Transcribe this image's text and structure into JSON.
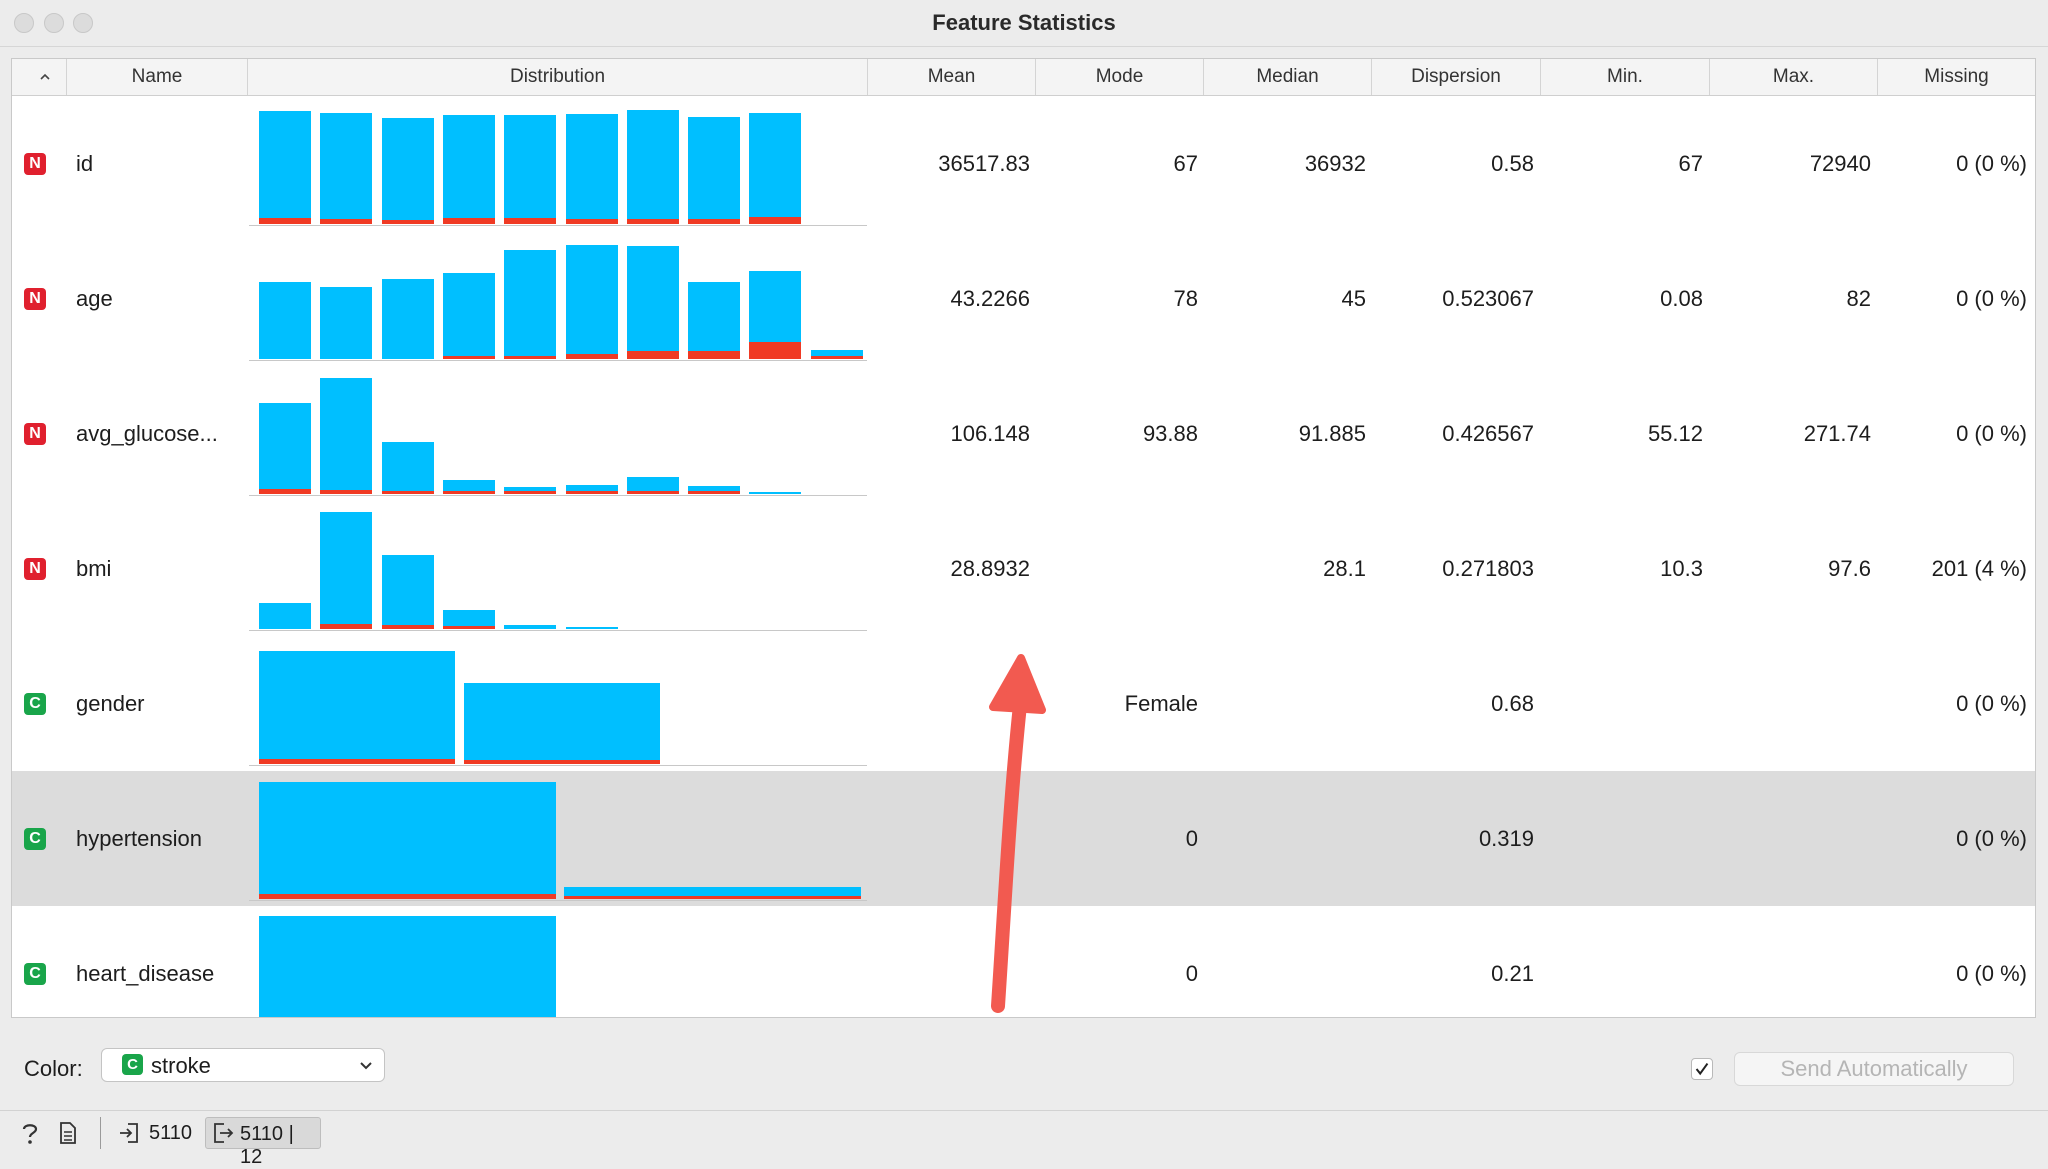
{
  "window": {
    "title": "Feature Statistics"
  },
  "headers": [
    "Name",
    "Distribution",
    "Mean",
    "Mode",
    "Median",
    "Dispersion",
    "Min.",
    "Max.",
    "Missing"
  ],
  "features": [
    {
      "type": "N",
      "name": "id",
      "mean": "36517.83",
      "mode": "67",
      "median": "36932",
      "dispersion": "0.58",
      "min": "67",
      "max": "72940",
      "missing": "0 (0 %)",
      "dist": [
        [
          0.96,
          0.05
        ],
        [
          0.94,
          0.04
        ],
        [
          0.9,
          0.03
        ],
        [
          0.92,
          0.05
        ],
        [
          0.92,
          0.05
        ],
        [
          0.93,
          0.04
        ],
        [
          0.97,
          0.04
        ],
        [
          0.91,
          0.04
        ],
        [
          0.94,
          0.06
        ]
      ]
    },
    {
      "type": "N",
      "name": "age",
      "mean": "43.2266",
      "mode": "78",
      "median": "45",
      "dispersion": "0.523067",
      "min": "0.08",
      "max": "82",
      "missing": "0 (0 %)",
      "dist": [
        [
          0.65,
          0
        ],
        [
          0.61,
          0
        ],
        [
          0.68,
          0
        ],
        [
          0.73,
          0.01
        ],
        [
          0.92,
          0.02
        ],
        [
          0.97,
          0.04
        ],
        [
          0.96,
          0.07
        ],
        [
          0.65,
          0.07
        ],
        [
          0.75,
          0.14
        ],
        [
          0.08,
          0.02
        ]
      ]
    },
    {
      "type": "N",
      "name": "avg_glucose...",
      "mean": "106.148",
      "mode": "93.88",
      "median": "91.885",
      "dispersion": "0.426567",
      "min": "55.12",
      "max": "271.74",
      "missing": "0 (0 %)",
      "dist": [
        [
          0.77,
          0.04
        ],
        [
          0.98,
          0.03
        ],
        [
          0.44,
          0.02
        ],
        [
          0.12,
          0.01
        ],
        [
          0.06,
          0.005
        ],
        [
          0.08,
          0.01
        ],
        [
          0.14,
          0.02
        ],
        [
          0.07,
          0.01
        ],
        [
          0.02,
          0
        ]
      ]
    },
    {
      "type": "N",
      "name": "bmi",
      "mean": "28.8932",
      "mode": "",
      "median": "28.1",
      "dispersion": "0.271803",
      "min": "10.3",
      "max": "97.6",
      "missing": "201 (4 %)",
      "dist": [
        [
          0.22,
          0
        ],
        [
          0.99,
          0.04
        ],
        [
          0.63,
          0.03
        ],
        [
          0.16,
          0.01
        ],
        [
          0.03,
          0
        ],
        [
          0.005,
          0
        ]
      ]
    },
    {
      "type": "C",
      "name": "gender",
      "mean": "",
      "mode": "Female",
      "median": "",
      "dispersion": "0.68",
      "min": "",
      "max": "",
      "missing": "0 (0 %)",
      "cat": [
        [
          0.96,
          0.04
        ],
        [
          0.69,
          0.03
        ]
      ]
    },
    {
      "type": "C",
      "name": "hypertension",
      "mean": "",
      "mode": "0",
      "median": "",
      "dispersion": "0.319",
      "min": "",
      "max": "",
      "missing": "0 (0 %)",
      "cat": [
        [
          0.99,
          0.04
        ],
        [
          0.1,
          0.02
        ]
      ]
    },
    {
      "type": "C",
      "name": "heart_disease",
      "mean": "",
      "mode": "0",
      "median": "",
      "dispersion": "0.21",
      "min": "",
      "max": "",
      "missing": "0 (0 %)",
      "cat": [
        [
          1.0,
          0
        ]
      ]
    }
  ],
  "color_label": "Color:",
  "color_value": "stroke",
  "color_badge": "C",
  "send_label": "Send Automatically",
  "status": {
    "input_count": "5110",
    "output_label": "5110 | 12"
  },
  "colors": {
    "bar": "#00bfff",
    "target": "#f03a24",
    "numeric_badge": "#e0202e",
    "categorical_badge": "#19a54a",
    "annotation_arrow": "#f25a50"
  }
}
